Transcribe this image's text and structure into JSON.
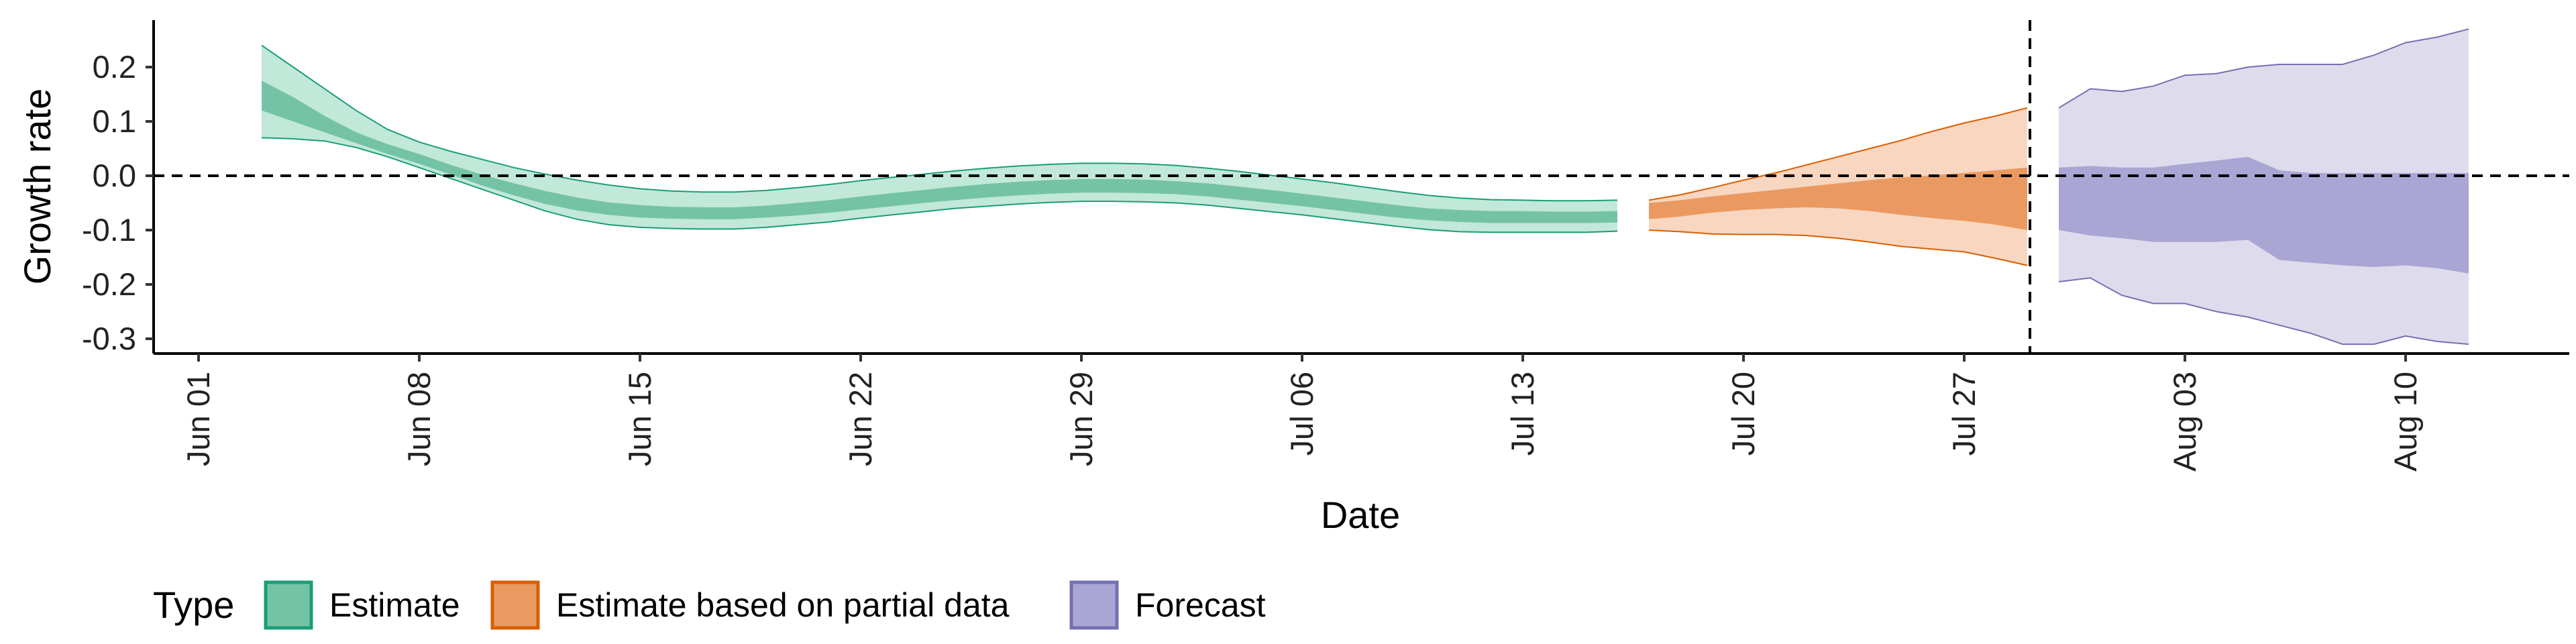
{
  "chart_data": {
    "type": "area",
    "title": "",
    "xlabel": "Date",
    "ylabel": "Growth rate",
    "x_tick_labels": [
      "Jun 01",
      "Jun 08",
      "Jun 15",
      "Jun 22",
      "Jun 29",
      "Jul 06",
      "Jul 13",
      "Jul 20",
      "Jul 27",
      "Aug 03",
      "Aug 10"
    ],
    "y_tick_labels": [
      "0.2",
      "0.1",
      "0.0",
      "-0.1",
      "-0.2",
      "-0.3"
    ],
    "y_ticks": [
      0.2,
      0.1,
      0.0,
      -0.1,
      -0.2,
      -0.3
    ],
    "ylim": [
      -0.34,
      0.3
    ],
    "xlim": [
      "2020-05-30",
      "2020-08-16"
    ],
    "reference_lines": {
      "horizontal_y": 0.0,
      "vertical_x": "2020-07-29"
    },
    "grid": false,
    "legend": {
      "title": "Type",
      "position": "bottom",
      "entries": [
        "Estimate",
        "Estimate based on partial data",
        "Forecast"
      ]
    },
    "colors": {
      "Estimate": {
        "outer": "#c2e8d9",
        "inner": "#75c3a6",
        "line": "#1b9e77"
      },
      "Estimate based on partial data": {
        "outer": "#f8d6bf",
        "inner": "#ea9a61",
        "line": "#d95f02"
      },
      "Forecast": {
        "outer": "#dedcec",
        "inner": "#a9a6d4",
        "line": "#7570b3"
      }
    },
    "series": [
      {
        "name": "Estimate",
        "x": [
          "2020-06-03",
          "2020-06-04",
          "2020-06-05",
          "2020-06-06",
          "2020-06-07",
          "2020-06-08",
          "2020-06-09",
          "2020-06-10",
          "2020-06-11",
          "2020-06-12",
          "2020-06-13",
          "2020-06-14",
          "2020-06-15",
          "2020-06-16",
          "2020-06-17",
          "2020-06-18",
          "2020-06-19",
          "2020-06-20",
          "2020-06-21",
          "2020-06-22",
          "2020-06-23",
          "2020-06-24",
          "2020-06-25",
          "2020-06-26",
          "2020-06-27",
          "2020-06-28",
          "2020-06-29",
          "2020-06-30",
          "2020-07-01",
          "2020-07-02",
          "2020-07-03",
          "2020-07-04",
          "2020-07-05",
          "2020-07-06",
          "2020-07-07",
          "2020-07-08",
          "2020-07-09",
          "2020-07-10",
          "2020-07-11",
          "2020-07-12",
          "2020-07-13",
          "2020-07-14",
          "2020-07-15",
          "2020-07-16"
        ],
        "lower90": [
          0.07,
          0.068,
          0.064,
          0.052,
          0.035,
          0.015,
          -0.005,
          -0.025,
          -0.045,
          -0.065,
          -0.08,
          -0.09,
          -0.095,
          -0.097,
          -0.098,
          -0.098,
          -0.095,
          -0.09,
          -0.085,
          -0.078,
          -0.072,
          -0.066,
          -0.06,
          -0.056,
          -0.052,
          -0.049,
          -0.047,
          -0.047,
          -0.048,
          -0.05,
          -0.054,
          -0.06,
          -0.066,
          -0.072,
          -0.079,
          -0.086,
          -0.093,
          -0.099,
          -0.103,
          -0.104,
          -0.104,
          -0.104,
          -0.104,
          -0.102
        ],
        "lower50": [
          0.12,
          0.1,
          0.08,
          0.06,
          0.04,
          0.022,
          0.002,
          -0.018,
          -0.036,
          -0.052,
          -0.064,
          -0.072,
          -0.077,
          -0.079,
          -0.08,
          -0.08,
          -0.077,
          -0.073,
          -0.068,
          -0.062,
          -0.056,
          -0.05,
          -0.045,
          -0.04,
          -0.036,
          -0.033,
          -0.031,
          -0.031,
          -0.032,
          -0.034,
          -0.038,
          -0.044,
          -0.05,
          -0.056,
          -0.063,
          -0.07,
          -0.077,
          -0.082,
          -0.085,
          -0.087,
          -0.087,
          -0.087,
          -0.087,
          -0.086
        ],
        "upper50": [
          0.175,
          0.145,
          0.11,
          0.08,
          0.058,
          0.04,
          0.02,
          0.002,
          -0.014,
          -0.028,
          -0.04,
          -0.049,
          -0.054,
          -0.057,
          -0.058,
          -0.058,
          -0.055,
          -0.05,
          -0.045,
          -0.038,
          -0.032,
          -0.026,
          -0.02,
          -0.015,
          -0.011,
          -0.008,
          -0.006,
          -0.006,
          -0.007,
          -0.01,
          -0.014,
          -0.02,
          -0.026,
          -0.033,
          -0.04,
          -0.047,
          -0.054,
          -0.06,
          -0.063,
          -0.065,
          -0.065,
          -0.066,
          -0.066,
          -0.065
        ],
        "upper90": [
          0.24,
          0.2,
          0.16,
          0.12,
          0.085,
          0.062,
          0.045,
          0.03,
          0.015,
          0.003,
          -0.008,
          -0.017,
          -0.024,
          -0.028,
          -0.03,
          -0.03,
          -0.027,
          -0.022,
          -0.016,
          -0.009,
          -0.003,
          0.003,
          0.009,
          0.014,
          0.018,
          0.021,
          0.023,
          0.023,
          0.022,
          0.019,
          0.014,
          0.008,
          0.001,
          -0.006,
          -0.013,
          -0.021,
          -0.029,
          -0.036,
          -0.041,
          -0.044,
          -0.045,
          -0.046,
          -0.046,
          -0.045
        ]
      },
      {
        "name": "Estimate based on partial data",
        "x": [
          "2020-07-17",
          "2020-07-18",
          "2020-07-19",
          "2020-07-20",
          "2020-07-21",
          "2020-07-22",
          "2020-07-23",
          "2020-07-24",
          "2020-07-25",
          "2020-07-26",
          "2020-07-27",
          "2020-07-28",
          "2020-07-29"
        ],
        "lower90": [
          -0.1,
          -0.103,
          -0.107,
          -0.108,
          -0.108,
          -0.11,
          -0.115,
          -0.122,
          -0.13,
          -0.135,
          -0.14,
          -0.152,
          -0.165
        ],
        "lower50": [
          -0.08,
          -0.075,
          -0.068,
          -0.063,
          -0.06,
          -0.058,
          -0.06,
          -0.065,
          -0.072,
          -0.078,
          -0.083,
          -0.09,
          -0.1
        ],
        "upper50": [
          -0.05,
          -0.045,
          -0.038,
          -0.032,
          -0.026,
          -0.02,
          -0.014,
          -0.008,
          -0.003,
          0.001,
          0.005,
          0.01,
          0.015
        ],
        "upper90": [
          -0.045,
          -0.035,
          -0.022,
          -0.008,
          0.005,
          0.02,
          0.035,
          0.05,
          0.065,
          0.082,
          0.097,
          0.11,
          0.125
        ]
      },
      {
        "name": "Forecast",
        "x": [
          "2020-07-30",
          "2020-07-31",
          "2020-08-01",
          "2020-08-02",
          "2020-08-03",
          "2020-08-04",
          "2020-08-05",
          "2020-08-06",
          "2020-08-07",
          "2020-08-08",
          "2020-08-09",
          "2020-08-10",
          "2020-08-11",
          "2020-08-12"
        ],
        "lower90": [
          -0.195,
          -0.188,
          -0.22,
          -0.235,
          -0.235,
          -0.25,
          -0.26,
          -0.275,
          -0.29,
          -0.31,
          -0.31,
          -0.295,
          -0.305,
          -0.31
        ],
        "lower50": [
          -0.1,
          -0.11,
          -0.115,
          -0.122,
          -0.122,
          -0.122,
          -0.118,
          -0.155,
          -0.16,
          -0.165,
          -0.168,
          -0.165,
          -0.17,
          -0.18
        ],
        "upper50": [
          0.015,
          0.018,
          0.015,
          0.015,
          0.022,
          0.028,
          0.035,
          0.01,
          0.005,
          0.005,
          0.005,
          0.005,
          0.005,
          0.005
        ],
        "upper90": [
          0.125,
          0.16,
          0.155,
          0.165,
          0.185,
          0.188,
          0.2,
          0.205,
          0.205,
          0.205,
          0.222,
          0.245,
          0.255,
          0.27
        ]
      }
    ]
  }
}
